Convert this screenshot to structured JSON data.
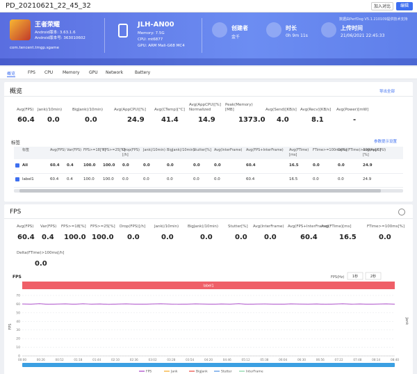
{
  "header": {
    "title": "PD_20210621_22_45_32",
    "buttons": [
      "加入对比",
      "编辑"
    ]
  },
  "app": {
    "name": "王者荣耀",
    "version": "Android版本: 3.63.1.6",
    "version_code": "Android版本号: 363010602",
    "package": "com.tencent.tmgp.sgame"
  },
  "device": {
    "name": "JLH-AN00",
    "memory": "Memory: 7.5G",
    "cpu": "CPU: mt6877",
    "gpu": "GPU: ARM Mali-G68 MC4"
  },
  "info": [
    {
      "label": "创建者",
      "value": "金千"
    },
    {
      "label": "时长",
      "value": "0h 9m 11s"
    },
    {
      "label": "上传时间",
      "value": "21/06/2021 22:45:33"
    }
  ],
  "notice": "数据由PerfDog V5.1.210109提供技术支持",
  "tabs": [
    "概览",
    "FPS",
    "CPU",
    "Memory",
    "GPU",
    "Network",
    "Battery"
  ],
  "overview": {
    "title": "概览",
    "action": "导出全部",
    "metrics": [
      {
        "label": "Avg(FPS)",
        "value": "60.4"
      },
      {
        "label": "Jank(/10min)",
        "value": "0.0"
      },
      {
        "label": "BigJank(/10min)",
        "value": "0.0"
      },
      {
        "label": "Avg(AppCPU)[%]",
        "value": "24.9"
      },
      {
        "label": "Avg(CTemp)[°C]",
        "value": "41.4"
      },
      {
        "label": "Avg(AppCPU)[%] Normalized",
        "value": "14.9"
      },
      {
        "label": "Peak(Memory)[MB]",
        "value": "1373.0"
      },
      {
        "label": "Avg(Send)[KB/s]",
        "value": "4.0"
      },
      {
        "label": "Avg(Recv)[KB/s]",
        "value": "8.1"
      },
      {
        "label": "Avg(Power)[mW]",
        "value": "-"
      }
    ]
  },
  "label_table": {
    "title": "标签",
    "action": "参数提示设置",
    "columns": [
      "标签",
      "Avg(FPS)",
      "Var(FPS)",
      "FPS>=18[%]",
      "FPS>=25[%]",
      "Drop(FPS)[/h]",
      "Jank(/10min)",
      "BigJank(/10min)",
      "Stutter[%]",
      "Avg(InterFrame)",
      "Avg(FPS+InterFrame)",
      "Avg(FTime)[ms]",
      "FTime>=100ms[%]",
      "Delta(FTime)>100ms[/h]",
      "Avg(AppCPU)[%]"
    ],
    "rows": [
      [
        "All",
        "60.4",
        "0.4",
        "100.0",
        "100.0",
        "0.0",
        "0.0",
        "0.0",
        "0.0",
        "0.0",
        "60.4",
        "16.5",
        "0.0",
        "0.0",
        "24.9"
      ],
      [
        "label1",
        "60.4",
        "0.4",
        "100.0",
        "100.0",
        "0.0",
        "0.0",
        "0.0",
        "0.0",
        "0.0",
        "60.4",
        "16.5",
        "0.0",
        "0.0",
        "24.9"
      ]
    ]
  },
  "fps": {
    "title": "FPS",
    "metrics": [
      {
        "label": "Avg(FPS)",
        "value": "60.4"
      },
      {
        "label": "Var(FPS)",
        "value": "0.4"
      },
      {
        "label": "FPS>=18[%]",
        "value": "100.0"
      },
      {
        "label": "FPS>=25[%]",
        "value": "100.0"
      },
      {
        "label": "Drop(FPS)[/h]",
        "value": "0.0"
      },
      {
        "label": "Jank(/10min)",
        "value": "0.0"
      },
      {
        "label": "BigJank(/10min)",
        "value": "0.0"
      },
      {
        "label": "Stutter[%]",
        "value": "0.0"
      },
      {
        "label": "Avg(InterFrame)",
        "value": "0.0"
      },
      {
        "label": "Avg(FPS+InterFrame)",
        "value": "60.4"
      },
      {
        "label": "Avg(FTime)[ms]",
        "value": "16.5"
      },
      {
        "label": "FTime>=100ms[%]",
        "value": "0.0"
      },
      {
        "label": "Delta(FTime)>100ms[/h]",
        "value": "0.0"
      }
    ],
    "chart": {
      "type": "line",
      "title": "FPS",
      "y_label": "FPS",
      "y2_label": "Jank",
      "interval_label": "FPS(Hz)",
      "interval_options": [
        "1秒",
        "2秒"
      ],
      "band_label": "label1",
      "ylim": [
        0,
        70
      ],
      "yticks": [
        0,
        10,
        20,
        30,
        40,
        50,
        60,
        70
      ],
      "grid": true,
      "x_labels": [
        "00:00",
        "00:26",
        "00:52",
        "01:18",
        "01:44",
        "02:10",
        "02:36",
        "03:02",
        "03:28",
        "03:54",
        "04:20",
        "04:46",
        "05:12",
        "05:38",
        "06:04",
        "06:30",
        "06:56",
        "07:22",
        "07:48",
        "08:14",
        "08:40"
      ],
      "series": [
        {
          "name": "FPS",
          "color": "#a43cc4",
          "values": [
            60.2,
            60.0,
            60.5,
            59.8,
            60.1,
            60.3,
            59.9,
            60.4,
            60.0,
            60.2,
            59.7,
            60.1,
            60.3,
            60.0,
            59.9,
            60.2,
            60.4,
            60.1,
            59.8,
            60.0,
            60.3,
            60.1,
            59.9,
            60.2,
            60.0,
            60.5,
            59.8,
            60.1,
            60.2,
            60.0,
            59.9,
            60.3,
            60.1,
            60.0,
            60.2,
            59.8,
            60.1,
            60.4,
            60.0,
            60.2,
            59.9,
            60.1,
            60.3,
            60.0
          ]
        }
      ],
      "legend": [
        {
          "name": "FPS",
          "color": "#a43cc4"
        },
        {
          "name": "Jank",
          "color": "#f5a623"
        },
        {
          "name": "BigJank",
          "color": "#e8463c"
        },
        {
          "name": "Stutter",
          "color": "#4a90e2"
        },
        {
          "name": "InterFrame",
          "color": "#7ed3a0"
        }
      ]
    }
  }
}
